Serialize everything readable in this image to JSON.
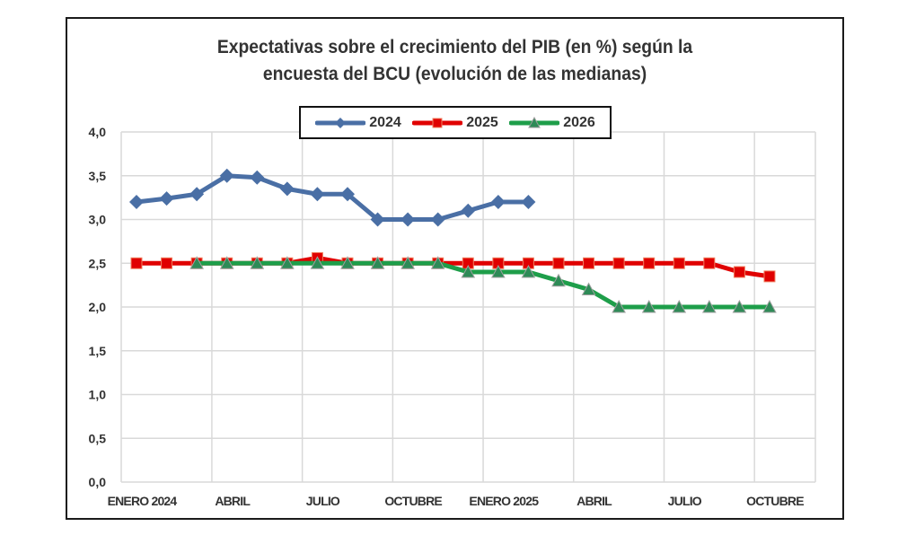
{
  "chart_data": {
    "type": "line",
    "title": [
      "Expectativas  sobre el crecimiento del PIB (en %) según la",
      "encuesta  del BCU (evolución de las medianas)"
    ],
    "xlabel": "",
    "ylabel": "",
    "ylim": [
      0,
      4
    ],
    "yticks": [
      "0,0",
      "0,5",
      "1,0",
      "1,5",
      "2,0",
      "2,5",
      "3,0",
      "3,5",
      "4,0"
    ],
    "ytick_values": [
      0,
      0.5,
      1.0,
      1.5,
      2.0,
      2.5,
      3.0,
      3.5,
      4.0
    ],
    "x_count": 22,
    "x_tick_labels": [
      {
        "index": 0,
        "label": "ENERO 2024"
      },
      {
        "index": 3,
        "label": "ABRIL"
      },
      {
        "index": 6,
        "label": "JULIO"
      },
      {
        "index": 9,
        "label": "OCTUBRE"
      },
      {
        "index": 12,
        "label": "ENERO 2025"
      },
      {
        "index": 15,
        "label": "ABRIL"
      },
      {
        "index": 18,
        "label": "JULIO"
      },
      {
        "index": 21,
        "label": "OCTUBRE"
      }
    ],
    "grid": true,
    "legend_position": "top-center",
    "series": [
      {
        "name": "2024",
        "color": "#4a6fa5",
        "marker": "diamond",
        "start_index": 0,
        "values": [
          3.2,
          3.24,
          3.29,
          3.5,
          3.48,
          3.35,
          3.29,
          3.29,
          3.0,
          3.0,
          3.0,
          3.1,
          3.2,
          3.2
        ]
      },
      {
        "name": "2025",
        "color": "#e00000",
        "marker": "square",
        "start_index": 0,
        "values": [
          2.5,
          2.5,
          2.5,
          2.5,
          2.5,
          2.5,
          2.56,
          2.5,
          2.5,
          2.5,
          2.5,
          2.5,
          2.5,
          2.5,
          2.5,
          2.5,
          2.5,
          2.5,
          2.5,
          2.5,
          2.4,
          2.35
        ]
      },
      {
        "name": "2026",
        "color": "#1e9e4a",
        "marker": "triangle",
        "start_index": 2,
        "values": [
          2.5,
          2.5,
          2.5,
          2.5,
          2.5,
          2.5,
          2.5,
          2.5,
          2.5,
          2.4,
          2.4,
          2.4,
          2.3,
          2.2,
          2.0,
          2.0,
          2.0,
          2.0,
          2.0,
          2.0
        ]
      }
    ]
  }
}
